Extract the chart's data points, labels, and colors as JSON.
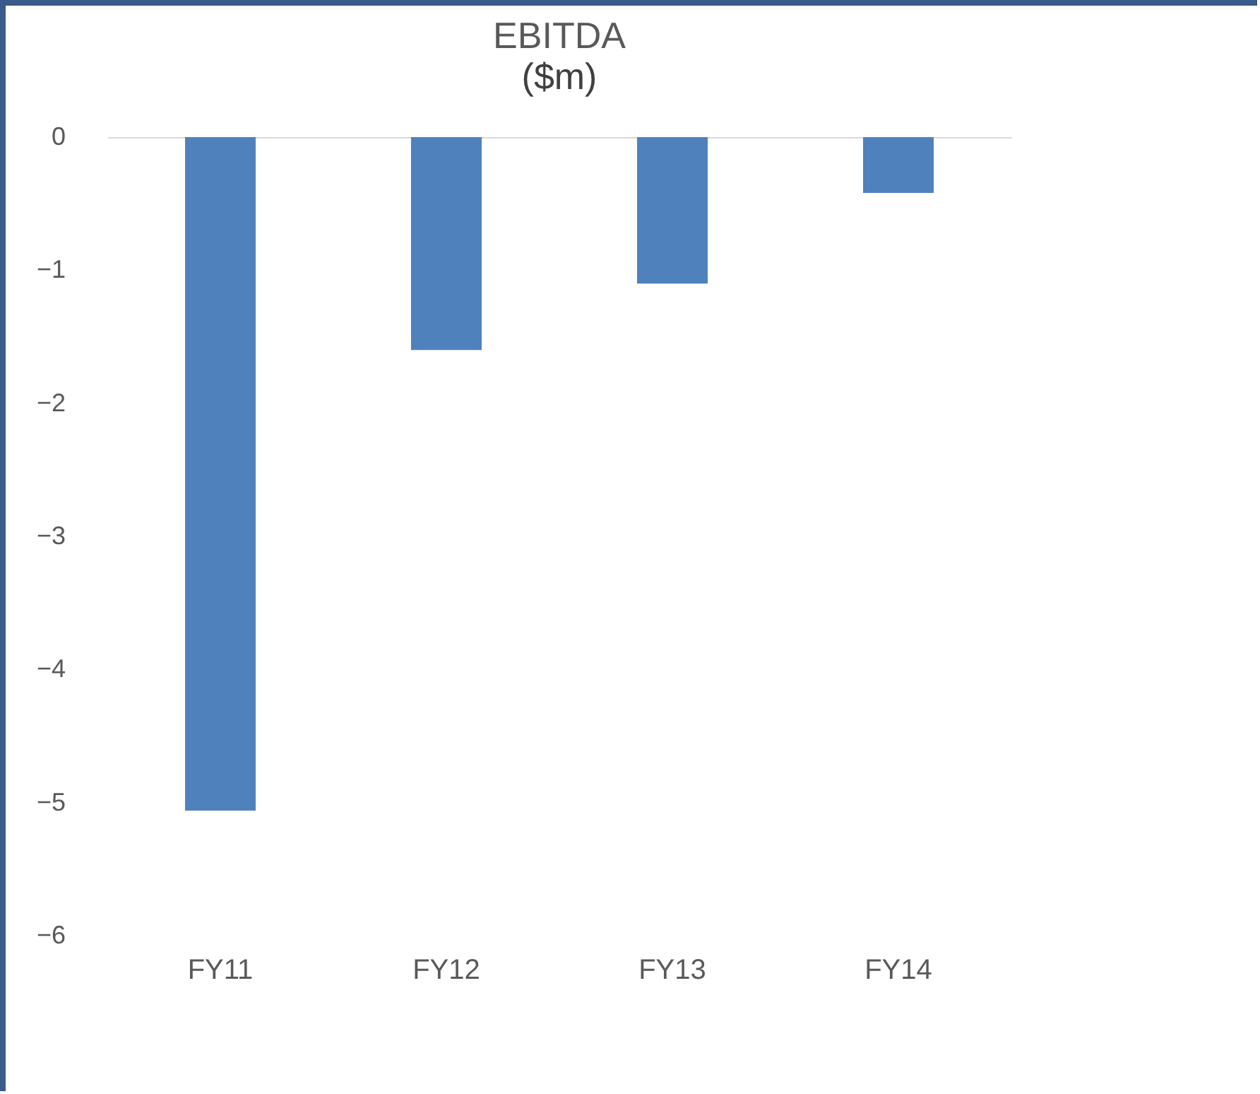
{
  "chart_data": {
    "type": "bar",
    "title": "EBITDA",
    "subtitle": "($m)",
    "categories": [
      "FY11",
      "FY12",
      "FY13",
      "FY14"
    ],
    "values": [
      -5.06,
      -1.6,
      -1.1,
      -0.42
    ],
    "color": "#4f81bd",
    "ylim": [
      -6,
      0
    ],
    "yticks": [
      -6,
      -5,
      -4,
      -3,
      -2,
      -1,
      0
    ]
  }
}
